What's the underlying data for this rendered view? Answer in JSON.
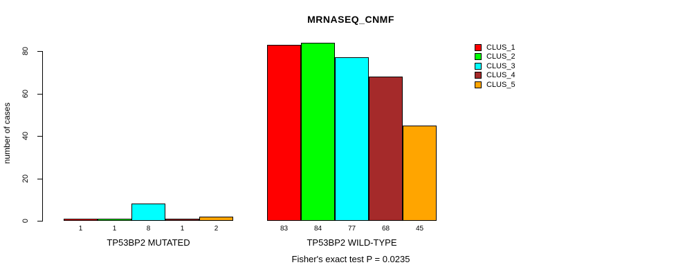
{
  "chart_data": {
    "type": "bar",
    "title": "MRNASEQ_CNMF",
    "subtitle": "Fisher's exact test P = 0.0235",
    "ylabel": "number of cases",
    "xlabel": "",
    "yticks": [
      0,
      20,
      40,
      60,
      80
    ],
    "ylim": [
      0,
      85
    ],
    "grid": false,
    "legend_position": "top-right",
    "bar_border_color": "#000000",
    "categories": [
      "TP53BP2 MUTATED",
      "TP53BP2 WILD-TYPE"
    ],
    "series": [
      {
        "name": "CLUS_1",
        "color": "#FF0000",
        "values": [
          1,
          83
        ]
      },
      {
        "name": "CLUS_2",
        "color": "#00FF00",
        "values": [
          1,
          84
        ]
      },
      {
        "name": "CLUS_3",
        "color": "#00FFFF",
        "values": [
          8,
          77
        ]
      },
      {
        "name": "CLUS_4",
        "color": "#A52A2A",
        "values": [
          1,
          68
        ]
      },
      {
        "name": "CLUS_5",
        "color": "#FFA500",
        "values": [
          2,
          45
        ]
      }
    ],
    "bar_value_labels": [
      [
        1,
        1,
        8,
        1,
        2
      ],
      [
        83,
        84,
        77,
        68,
        45
      ]
    ]
  }
}
